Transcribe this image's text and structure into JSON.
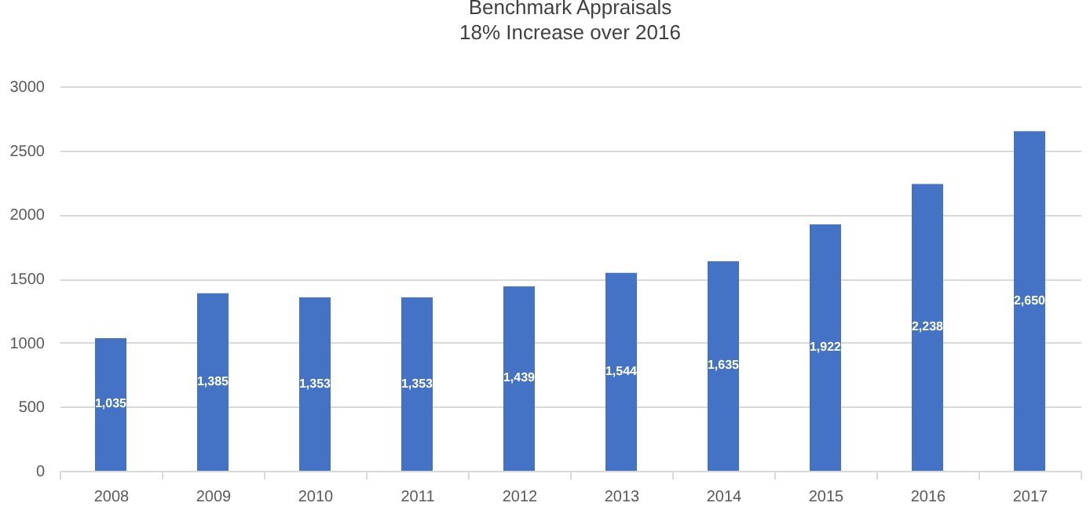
{
  "chart_data": {
    "type": "bar",
    "title": "Benchmark Appraisals",
    "subtitle": "18% Increase over 2016",
    "categories": [
      "2008",
      "2009",
      "2010",
      "2011",
      "2012",
      "2013",
      "2014",
      "2015",
      "2016",
      "2017"
    ],
    "values": [
      1035,
      1385,
      1353,
      1353,
      1439,
      1544,
      1635,
      1922,
      2238,
      2650
    ],
    "value_labels": [
      "1,035",
      "1,385",
      "1,353",
      "1,353",
      "1,439",
      "1,544",
      "1,635",
      "1,922",
      "2,238",
      "2,650"
    ],
    "color": "#4472c4",
    "ylim": [
      0,
      3000
    ],
    "yticks": [
      0,
      500,
      1000,
      1500,
      2000,
      2500,
      3000
    ],
    "grid": "y"
  }
}
